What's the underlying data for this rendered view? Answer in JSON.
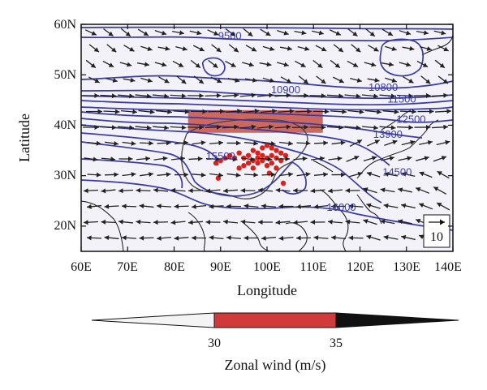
{
  "chart_data": {
    "type": "map",
    "xlabel": "Longitude",
    "ylabel": "Latitude",
    "x_ticks": [
      "60E",
      "70E",
      "80E",
      "90E",
      "100E",
      "110E",
      "120E",
      "130E",
      "140E"
    ],
    "y_ticks": [
      "60N",
      "50N",
      "40N",
      "30N",
      "20N"
    ],
    "lon_range": [
      60,
      140
    ],
    "lat_range": [
      15,
      60
    ],
    "contour_labels": [
      {
        "text": "9500",
        "lon": 92,
        "lat": 57
      },
      {
        "text": "10900",
        "lon": 104,
        "lat": 46.3
      },
      {
        "text": "10800",
        "lon": 125,
        "lat": 46.8
      },
      {
        "text": "11500",
        "lon": 129,
        "lat": 44.5
      },
      {
        "text": "12500",
        "lon": 131,
        "lat": 40.5
      },
      {
        "text": "13900",
        "lon": 126,
        "lat": 37.5
      },
      {
        "text": "14500",
        "lon": 128,
        "lat": 30
      },
      {
        "text": "15500",
        "lon": 90,
        "lat": 33.2
      },
      {
        "text": "16000",
        "lon": 116,
        "lat": 23
      }
    ],
    "jet_core": {
      "lon_min": 83,
      "lon_max": 112,
      "lat_min": 38.5,
      "lat_max": 43
    },
    "precip_points": [
      {
        "lon": 89,
        "lat": 32.5
      },
      {
        "lon": 90,
        "lat": 33
      },
      {
        "lon": 91,
        "lat": 33.5
      },
      {
        "lon": 92,
        "lat": 34
      },
      {
        "lon": 93,
        "lat": 33.5
      },
      {
        "lon": 94,
        "lat": 34.5
      },
      {
        "lon": 95,
        "lat": 33.5
      },
      {
        "lon": 96,
        "lat": 34
      },
      {
        "lon": 97,
        "lat": 35
      },
      {
        "lon": 98,
        "lat": 34.5
      },
      {
        "lon": 99,
        "lat": 35.5
      },
      {
        "lon": 100,
        "lat": 36
      },
      {
        "lon": 101,
        "lat": 35.5
      },
      {
        "lon": 102,
        "lat": 35
      },
      {
        "lon": 103,
        "lat": 34.5
      },
      {
        "lon": 101,
        "lat": 34
      },
      {
        "lon": 100,
        "lat": 33.5
      },
      {
        "lon": 99,
        "lat": 33
      },
      {
        "lon": 98,
        "lat": 32.5
      },
      {
        "lon": 97,
        "lat": 33
      },
      {
        "lon": 96,
        "lat": 32.5
      },
      {
        "lon": 102,
        "lat": 33.5
      },
      {
        "lon": 103,
        "lat": 33
      },
      {
        "lon": 100,
        "lat": 32
      },
      {
        "lon": 101,
        "lat": 32.5
      },
      {
        "lon": 99,
        "lat": 34
      },
      {
        "lon": 98,
        "lat": 33.5
      },
      {
        "lon": 95,
        "lat": 32
      },
      {
        "lon": 104,
        "lat": 34
      },
      {
        "lon": 102,
        "lat": 31.5
      },
      {
        "lon": 97,
        "lat": 31.5
      },
      {
        "lon": 94,
        "lat": 31.5
      },
      {
        "lon": 89.5,
        "lat": 29.5
      },
      {
        "lon": 103.5,
        "lat": 28.5
      },
      {
        "lon": 100.5,
        "lat": 30.5
      }
    ],
    "reference_vector": {
      "label": "10"
    },
    "colorbar": {
      "title": "Zonal wind (m/s)",
      "ticks": [
        "30",
        "35"
      ],
      "colors": [
        "#f4f4f4",
        "#d03a3a",
        "#111111"
      ]
    },
    "colors": {
      "contour": "#3a3aa6",
      "vector": "#222222",
      "plateau": "#333333",
      "coast": "#111111",
      "precip": "#d8221b",
      "jet": "#c0392b"
    },
    "grid": false
  }
}
